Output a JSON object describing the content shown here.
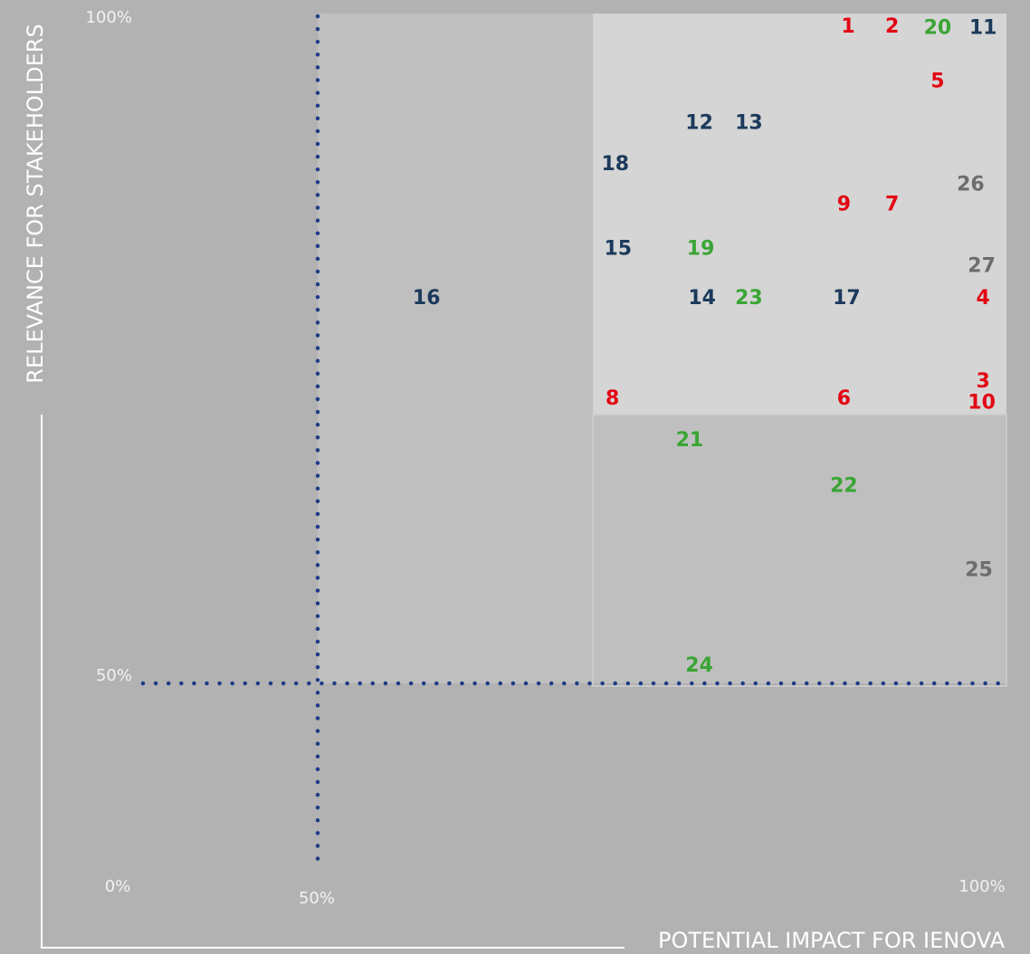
{
  "chart_data": {
    "type": "scatter",
    "x_label": "POTENTIAL IMPACT FOR IENOVA",
    "y_label": "RELEVANCE FOR STAKEHOLDERS",
    "origin_label": "0%",
    "xlim": [
      50,
      100
    ],
    "ylim": [
      50,
      100
    ],
    "xticks": [
      {
        "value": 50,
        "label": "50%"
      },
      {
        "value": 100,
        "label": "100%"
      }
    ],
    "yticks": [
      {
        "value": 50,
        "label": "50%"
      },
      {
        "value": 100,
        "label": "100%"
      }
    ],
    "labels": [
      "1",
      "2",
      "20",
      "11",
      "5",
      "12",
      "13",
      "18",
      "26",
      "9",
      "7",
      "15",
      "19",
      "27",
      "16",
      "14",
      "23",
      "17",
      "4",
      "3",
      "10",
      "8",
      "6",
      "21",
      "22",
      "25",
      "24"
    ],
    "x": [
      88.5,
      91.7,
      95.0,
      98.3,
      95.0,
      77.7,
      81.3,
      71.6,
      97.4,
      88.2,
      91.7,
      71.8,
      77.8,
      98.2,
      57.9,
      77.9,
      81.3,
      88.4,
      98.3,
      98.3,
      98.2,
      71.4,
      88.2,
      77.0,
      88.2,
      98.0,
      77.7
    ],
    "y": [
      99.0,
      99.0,
      98.9,
      98.9,
      94.9,
      91.8,
      91.8,
      88.7,
      87.2,
      85.7,
      85.7,
      82.4,
      82.4,
      81.1,
      78.7,
      78.7,
      78.7,
      78.7,
      78.7,
      72.5,
      70.9,
      71.2,
      71.2,
      68.1,
      64.7,
      58.4,
      51.3
    ],
    "colors": [
      "#e30613",
      "#e30613",
      "#3aa535",
      "#1b3a5c",
      "#e30613",
      "#1b3a5c",
      "#1b3a5c",
      "#1b3a5c",
      "#6d6d6d",
      "#e30613",
      "#e30613",
      "#1b3a5c",
      "#3aa535",
      "#6d6d6d",
      "#1b3a5c",
      "#1b3a5c",
      "#3aa535",
      "#1b3a5c",
      "#e30613",
      "#e30613",
      "#e30613",
      "#e30613",
      "#e30613",
      "#3aa535",
      "#3aa535",
      "#6d6d6d",
      "#3aa535"
    ],
    "guide_color": "#1d3c87"
  }
}
